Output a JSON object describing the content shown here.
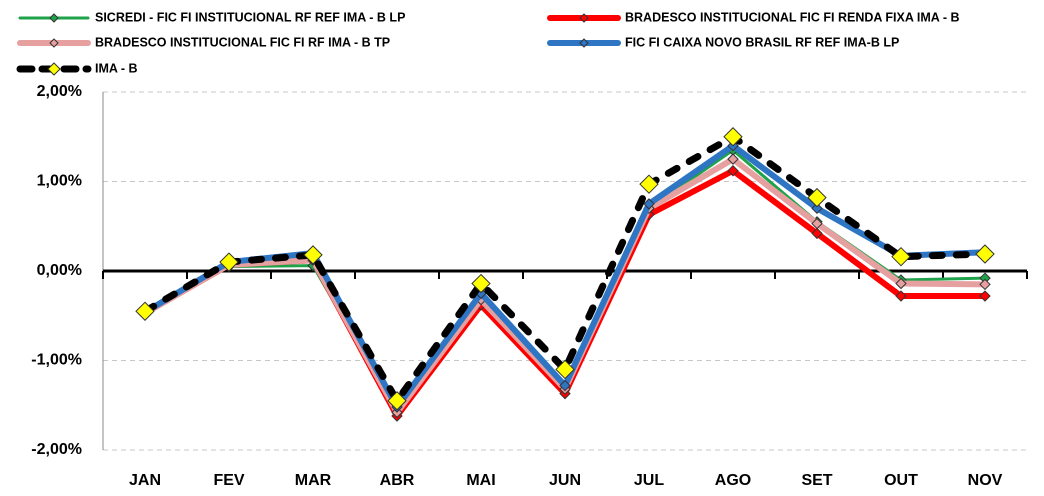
{
  "chart_data": {
    "type": "line",
    "categories": [
      "JAN",
      "FEV",
      "MAR",
      "ABR",
      "MAI",
      "JUN",
      "JUL",
      "AGO",
      "SET",
      "OUT",
      "NOV"
    ],
    "series": [
      {
        "name": "SICREDI - FIC FI INSTITUCIONAL RF REF IMA - B LP",
        "color": "#1fa34a",
        "values": [
          -0.48,
          0.05,
          0.06,
          -1.57,
          -0.33,
          -1.3,
          0.7,
          1.35,
          0.55,
          -0.1,
          -0.08
        ]
      },
      {
        "name": "BRADESCO INSTITUCIONAL FIC FI RENDA FIXA IMA - B",
        "color": "#ff0000",
        "values": [
          -0.47,
          0.07,
          0.12,
          -1.62,
          -0.38,
          -1.37,
          0.63,
          1.12,
          0.42,
          -0.28,
          -0.28
        ]
      },
      {
        "name": "BRADESCO INSTITUCIONAL FIC FI RF IMA - B TP",
        "color": "#e6a0a0",
        "values": [
          -0.47,
          0.07,
          0.12,
          -1.58,
          -0.32,
          -1.32,
          0.7,
          1.25,
          0.53,
          -0.14,
          -0.15
        ]
      },
      {
        "name": "FIC FI CAIXA NOVO BRASIL RF REF IMA-B LP",
        "color": "#2e75c4",
        "values": [
          -0.46,
          0.1,
          0.2,
          -1.52,
          -0.25,
          -1.28,
          0.75,
          1.4,
          0.7,
          0.17,
          0.21
        ]
      },
      {
        "name": "IMA - B",
        "color": "#000000",
        "marker_color": "#ffff00",
        "dashed": true,
        "values": [
          -0.45,
          0.1,
          0.18,
          -1.45,
          -0.14,
          -1.1,
          0.97,
          1.5,
          0.82,
          0.16,
          0.19
        ]
      }
    ],
    "ylim": [
      -2,
      2
    ],
    "yticks": [
      {
        "value": 2,
        "label": "2,00%"
      },
      {
        "value": 1,
        "label": "1,00%"
      },
      {
        "value": 0,
        "label": "0,00%"
      },
      {
        "value": -1,
        "label": "-1,00%"
      },
      {
        "value": -2,
        "label": "-2,00%"
      }
    ],
    "grid": true,
    "legend": "top"
  }
}
